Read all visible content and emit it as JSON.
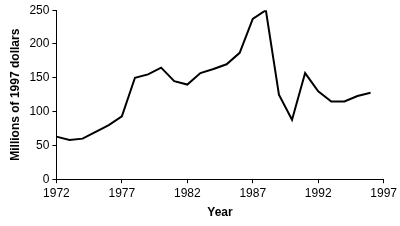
{
  "chart_data": {
    "type": "line",
    "x_label": "Year",
    "y_label": "Millions of 1997 dollars",
    "x": [
      1972,
      1973,
      1974,
      1975,
      1976,
      1977,
      1978,
      1979,
      1980,
      1981,
      1982,
      1983,
      1984,
      1985,
      1986,
      1987,
      1988,
      1989,
      1990,
      1991,
      1992,
      1993,
      1994,
      1995,
      1996
    ],
    "values": [
      63,
      58,
      60,
      70,
      80,
      93,
      150,
      155,
      165,
      145,
      140,
      157,
      163,
      170,
      187,
      237,
      250,
      125,
      88,
      157,
      130,
      115,
      115,
      123,
      128
    ],
    "color": "#000000",
    "xlim": [
      1972,
      1997
    ],
    "xticks": [
      1972,
      1977,
      1982,
      1987,
      1992,
      1997
    ],
    "ylim": [
      0,
      250
    ],
    "yticks": [
      0,
      50,
      100,
      150,
      200,
      250
    ],
    "grid": false
  }
}
